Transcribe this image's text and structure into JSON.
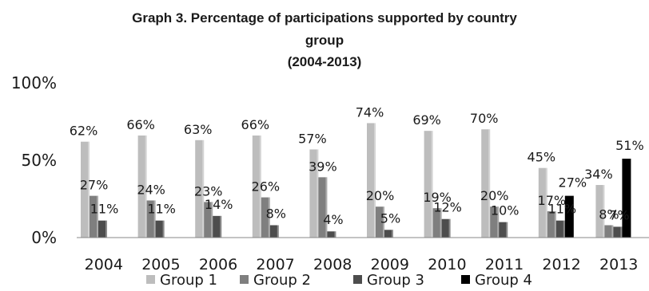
{
  "chart_data": {
    "type": "bar",
    "title_lines": [
      "Graph 3. Percentage of participations supported by country",
      "group",
      "(2004-2013)"
    ],
    "categories": [
      "2004",
      "2005",
      "2006",
      "2007",
      "2008",
      "2009",
      "2010",
      "2011",
      "2012",
      "2013"
    ],
    "y_ticks": [
      "100%",
      "50%",
      "0%"
    ],
    "ylim": [
      0,
      100
    ],
    "legend_position": "bottom",
    "series": [
      {
        "name": "Group 1",
        "color": "#bdbdbd",
        "values": [
          62,
          66,
          63,
          66,
          57,
          74,
          69,
          70,
          45,
          34
        ],
        "labels": [
          "62%",
          "66%",
          "63%",
          "66%",
          "57%",
          "74%",
          "69%",
          "70%",
          "45%",
          "34%"
        ]
      },
      {
        "name": "Group 2",
        "color": "#7f7f7f",
        "values": [
          27,
          24,
          23,
          26,
          39,
          20,
          19,
          20,
          17,
          8
        ],
        "labels": [
          "27%",
          "24%",
          "23%",
          "26%",
          "39%",
          "20%",
          "19%",
          "20%",
          "17%",
          "8%"
        ]
      },
      {
        "name": "Group 3",
        "color": "#4d4d4d",
        "values": [
          11,
          11,
          14,
          8,
          4,
          5,
          12,
          10,
          11,
          7
        ],
        "labels": [
          "11%",
          "11%",
          "14%",
          "8%",
          "4%",
          "5%",
          "12%",
          "10%",
          "11%",
          "7%"
        ]
      },
      {
        "name": "Group 4",
        "color": "#000000",
        "values": [
          null,
          null,
          null,
          null,
          null,
          null,
          null,
          null,
          27,
          51
        ],
        "labels": [
          "",
          "",
          "",
          "",
          "",
          "",
          "",
          "",
          "27%",
          "51%"
        ]
      }
    ]
  }
}
